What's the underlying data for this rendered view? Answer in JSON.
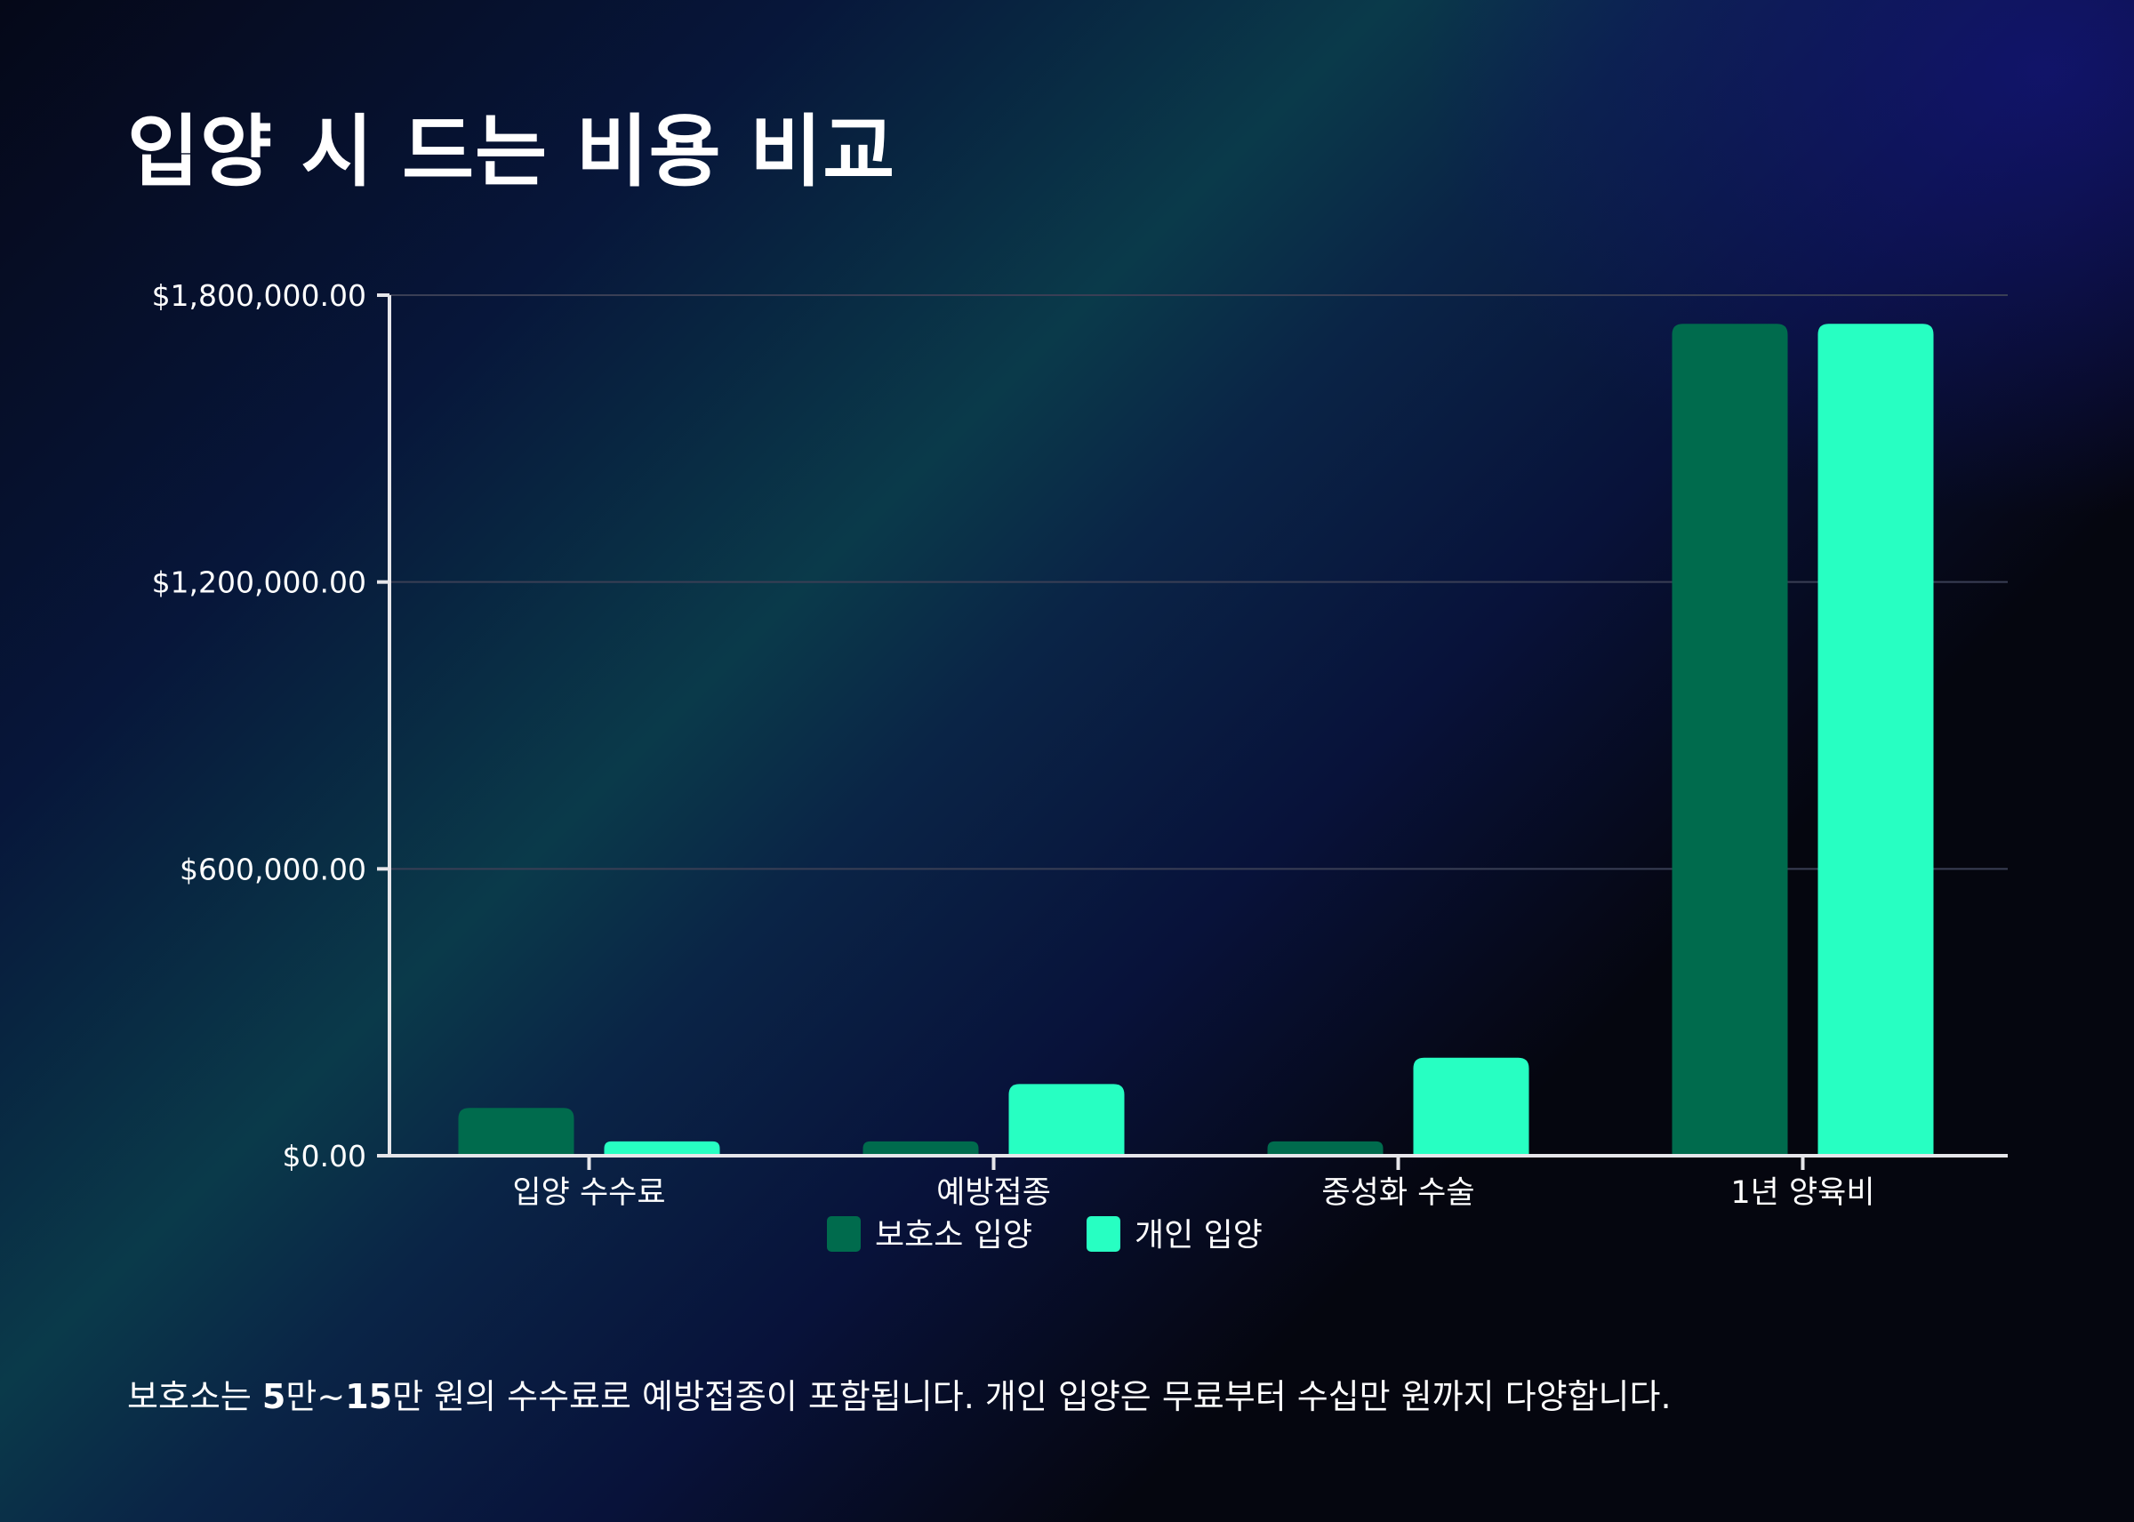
{
  "colors": {
    "series_shelter": "#006b4d",
    "series_private": "#27ffc2",
    "axis": "#e6e6ea",
    "grid": "#3a3f55"
  },
  "chart_data": {
    "type": "bar",
    "title": "입양 시 드는 비용 비교",
    "xlabel": "",
    "ylabel": "",
    "categories": [
      "입양 수수료",
      "예방접종",
      "중성화 수술",
      "1년 양육비"
    ],
    "series": [
      {
        "name": "보호소 입양",
        "values": [
          100000,
          30000,
          30000,
          1740000
        ]
      },
      {
        "name": "개인 입양",
        "values": [
          30000,
          150000,
          205000,
          1740000
        ]
      }
    ],
    "ylim": [
      0,
      1800000
    ],
    "y_ticks": [
      0,
      600000,
      1200000,
      1800000
    ],
    "y_tick_labels": [
      "$0.00",
      "$600,000.00",
      "$1,200,000.00",
      "$1,800,000.00"
    ],
    "grid": true,
    "legend_position": "bottom"
  },
  "caption": {
    "prefix": "보호소는 ",
    "bold1": "5",
    "mid1": "만~",
    "bold2": "15",
    "rest": "만 원의 수수료로 예방접종이 포함됩니다. 개인 입양은 무료부터 수십만 원까지 다양합니다."
  }
}
